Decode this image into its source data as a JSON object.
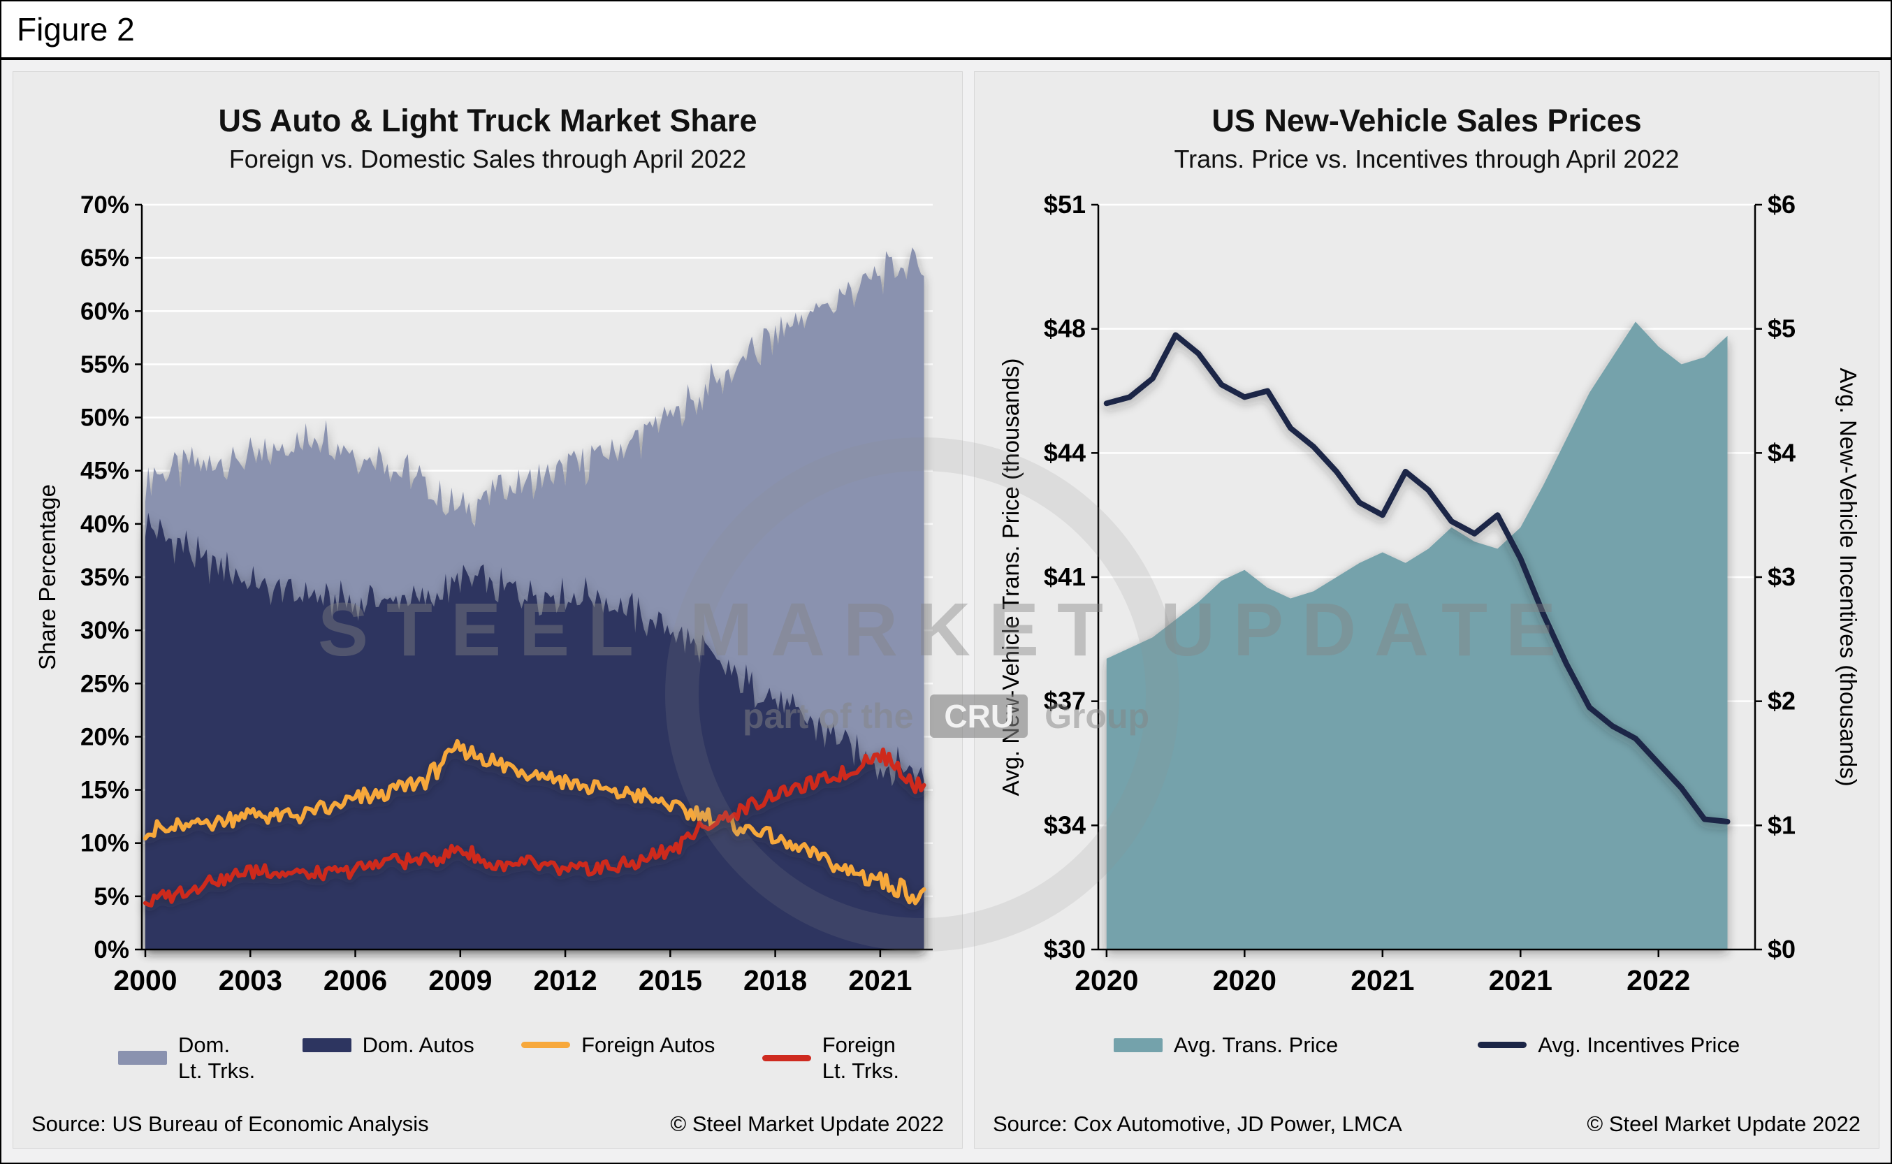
{
  "figure_label": "Figure 2",
  "watermark": {
    "line1": "STEEL MARKET UPDATE",
    "line2_prefix": "part of the",
    "badge": "CRU",
    "line2_suffix": "Group"
  },
  "chart_data": [
    {
      "type": "area",
      "title": "US Auto & Light Truck Market Share",
      "subtitle": "Foreign vs. Domestic Sales through April 2022",
      "ylabel": "Share Percentage",
      "ylim": [
        0,
        70
      ],
      "ytick_step": 5,
      "y_format": "percent",
      "xlim": [
        1999.9,
        2022.5
      ],
      "xticks": [
        2000,
        2003,
        2006,
        2009,
        2012,
        2015,
        2018,
        2021
      ],
      "anchor_start_year": 2000,
      "x_monthly_end": 2022.25,
      "grid": true,
      "legend_position": "bottom",
      "series": [
        {
          "name": "Dom. Lt. Trks.",
          "legend": "Dom.\nLt. Trks.",
          "kind": "area",
          "color": "#8A92AF",
          "noise": 1.6,
          "values": [
            44.5,
            45,
            45.5,
            46,
            47,
            48.5,
            46.5,
            46,
            43.5,
            41,
            43,
            43.5,
            45,
            46.5,
            48,
            50,
            52.5,
            55,
            57.5,
            59.5,
            61.5,
            63.5,
            64.5
          ]
        },
        {
          "name": "Dom. Autos",
          "legend": "Dom. Autos",
          "kind": "area",
          "color": "#2D3560",
          "noise": 1.5,
          "values": [
            40,
            38,
            36,
            34.5,
            33.5,
            33,
            32.5,
            33,
            32.5,
            35,
            34,
            33.5,
            33,
            33,
            31.5,
            30,
            28,
            25.5,
            23.5,
            21.5,
            19,
            17.5,
            16.5
          ]
        },
        {
          "name": "Foreign Autos",
          "legend": "Foreign Autos",
          "kind": "line",
          "color": "#F7A83B",
          "noise": 0.7,
          "values": [
            11,
            11.5,
            12,
            12.8,
            12.5,
            13,
            14,
            15,
            16,
            19,
            17.5,
            16.5,
            16,
            15,
            14.5,
            13.5,
            12.5,
            11.5,
            10.5,
            9,
            7.5,
            6.5,
            5.2
          ]
        },
        {
          "name": "Foreign Lt. Trks.",
          "legend": "Foreign\nLt. Trks.",
          "kind": "line",
          "color": "#CE2A1F",
          "noise": 0.6,
          "values": [
            4.5,
            5.5,
            6.5,
            7.5,
            7.3,
            7,
            7.5,
            8.5,
            8.3,
            9.5,
            7.8,
            8,
            7.5,
            7.6,
            8,
            9.5,
            11.5,
            13,
            14.5,
            15.5,
            16.5,
            18.5,
            15.5
          ]
        }
      ],
      "source": "Source: US Bureau of Economic Analysis",
      "copyright": "© Steel Market Update 2022"
    },
    {
      "type": "dual-axis",
      "title": "US New-Vehicle Sales Prices",
      "subtitle": "Trans. Price vs. Incentives through April 2022",
      "ylabel_left": "Avg. New-Vehicle Trans. Price (thousands)",
      "ylabel_right": "Avg. New-Vehicle Incentives (thousands)",
      "ylim_left": [
        30,
        51
      ],
      "yticks_left": {
        "values": [
          30,
          33.5,
          37,
          40.5,
          44,
          47.5,
          51
        ],
        "labels": [
          "$30",
          "$34",
          "$37",
          "$41",
          "$44",
          "$48",
          "$51"
        ]
      },
      "ylim_right": [
        0,
        6
      ],
      "yticks_right": {
        "values": [
          0,
          1,
          2,
          3,
          4,
          5,
          6
        ],
        "labels": [
          "$0",
          "$1",
          "$2",
          "$3",
          "$4",
          "$5",
          "$6"
        ]
      },
      "xlim": [
        2019.97,
        2022.35
      ],
      "xticks": {
        "values": [
          2020,
          2020.5,
          2021,
          2021.5,
          2022
        ],
        "labels": [
          "2020",
          "2020",
          "2021",
          "2021",
          "2022"
        ]
      },
      "x_monthly_start": 2020,
      "grid": true,
      "legend_position": "bottom",
      "series": [
        {
          "name": "Avg. Trans. Price",
          "legend": "Avg. Trans. Price",
          "kind": "area",
          "axis": "left",
          "color": "#74A2AB",
          "values": [
            38.2,
            38.5,
            38.8,
            39.3,
            39.8,
            40.4,
            40.7,
            40.2,
            39.9,
            40.1,
            40.5,
            40.9,
            41.2,
            40.9,
            41.3,
            41.9,
            41.5,
            41.3,
            41.9,
            43.1,
            44.4,
            45.7,
            46.7,
            47.7,
            47.0,
            46.5,
            46.7,
            47.3
          ]
        },
        {
          "name": "Avg. Incentives Price",
          "legend": "Avg. Incentives Price",
          "kind": "line",
          "axis": "right",
          "color": "#1B2546",
          "values": [
            4.4,
            4.45,
            4.6,
            4.95,
            4.8,
            4.55,
            4.45,
            4.5,
            4.2,
            4.05,
            3.85,
            3.6,
            3.5,
            3.85,
            3.7,
            3.45,
            3.35,
            3.5,
            3.15,
            2.7,
            2.3,
            1.95,
            1.8,
            1.7,
            1.5,
            1.3,
            1.05,
            1.03
          ]
        }
      ],
      "source": "Source: Cox Automotive, JD Power, LMCA",
      "copyright": "© Steel Market Update 2022"
    }
  ]
}
